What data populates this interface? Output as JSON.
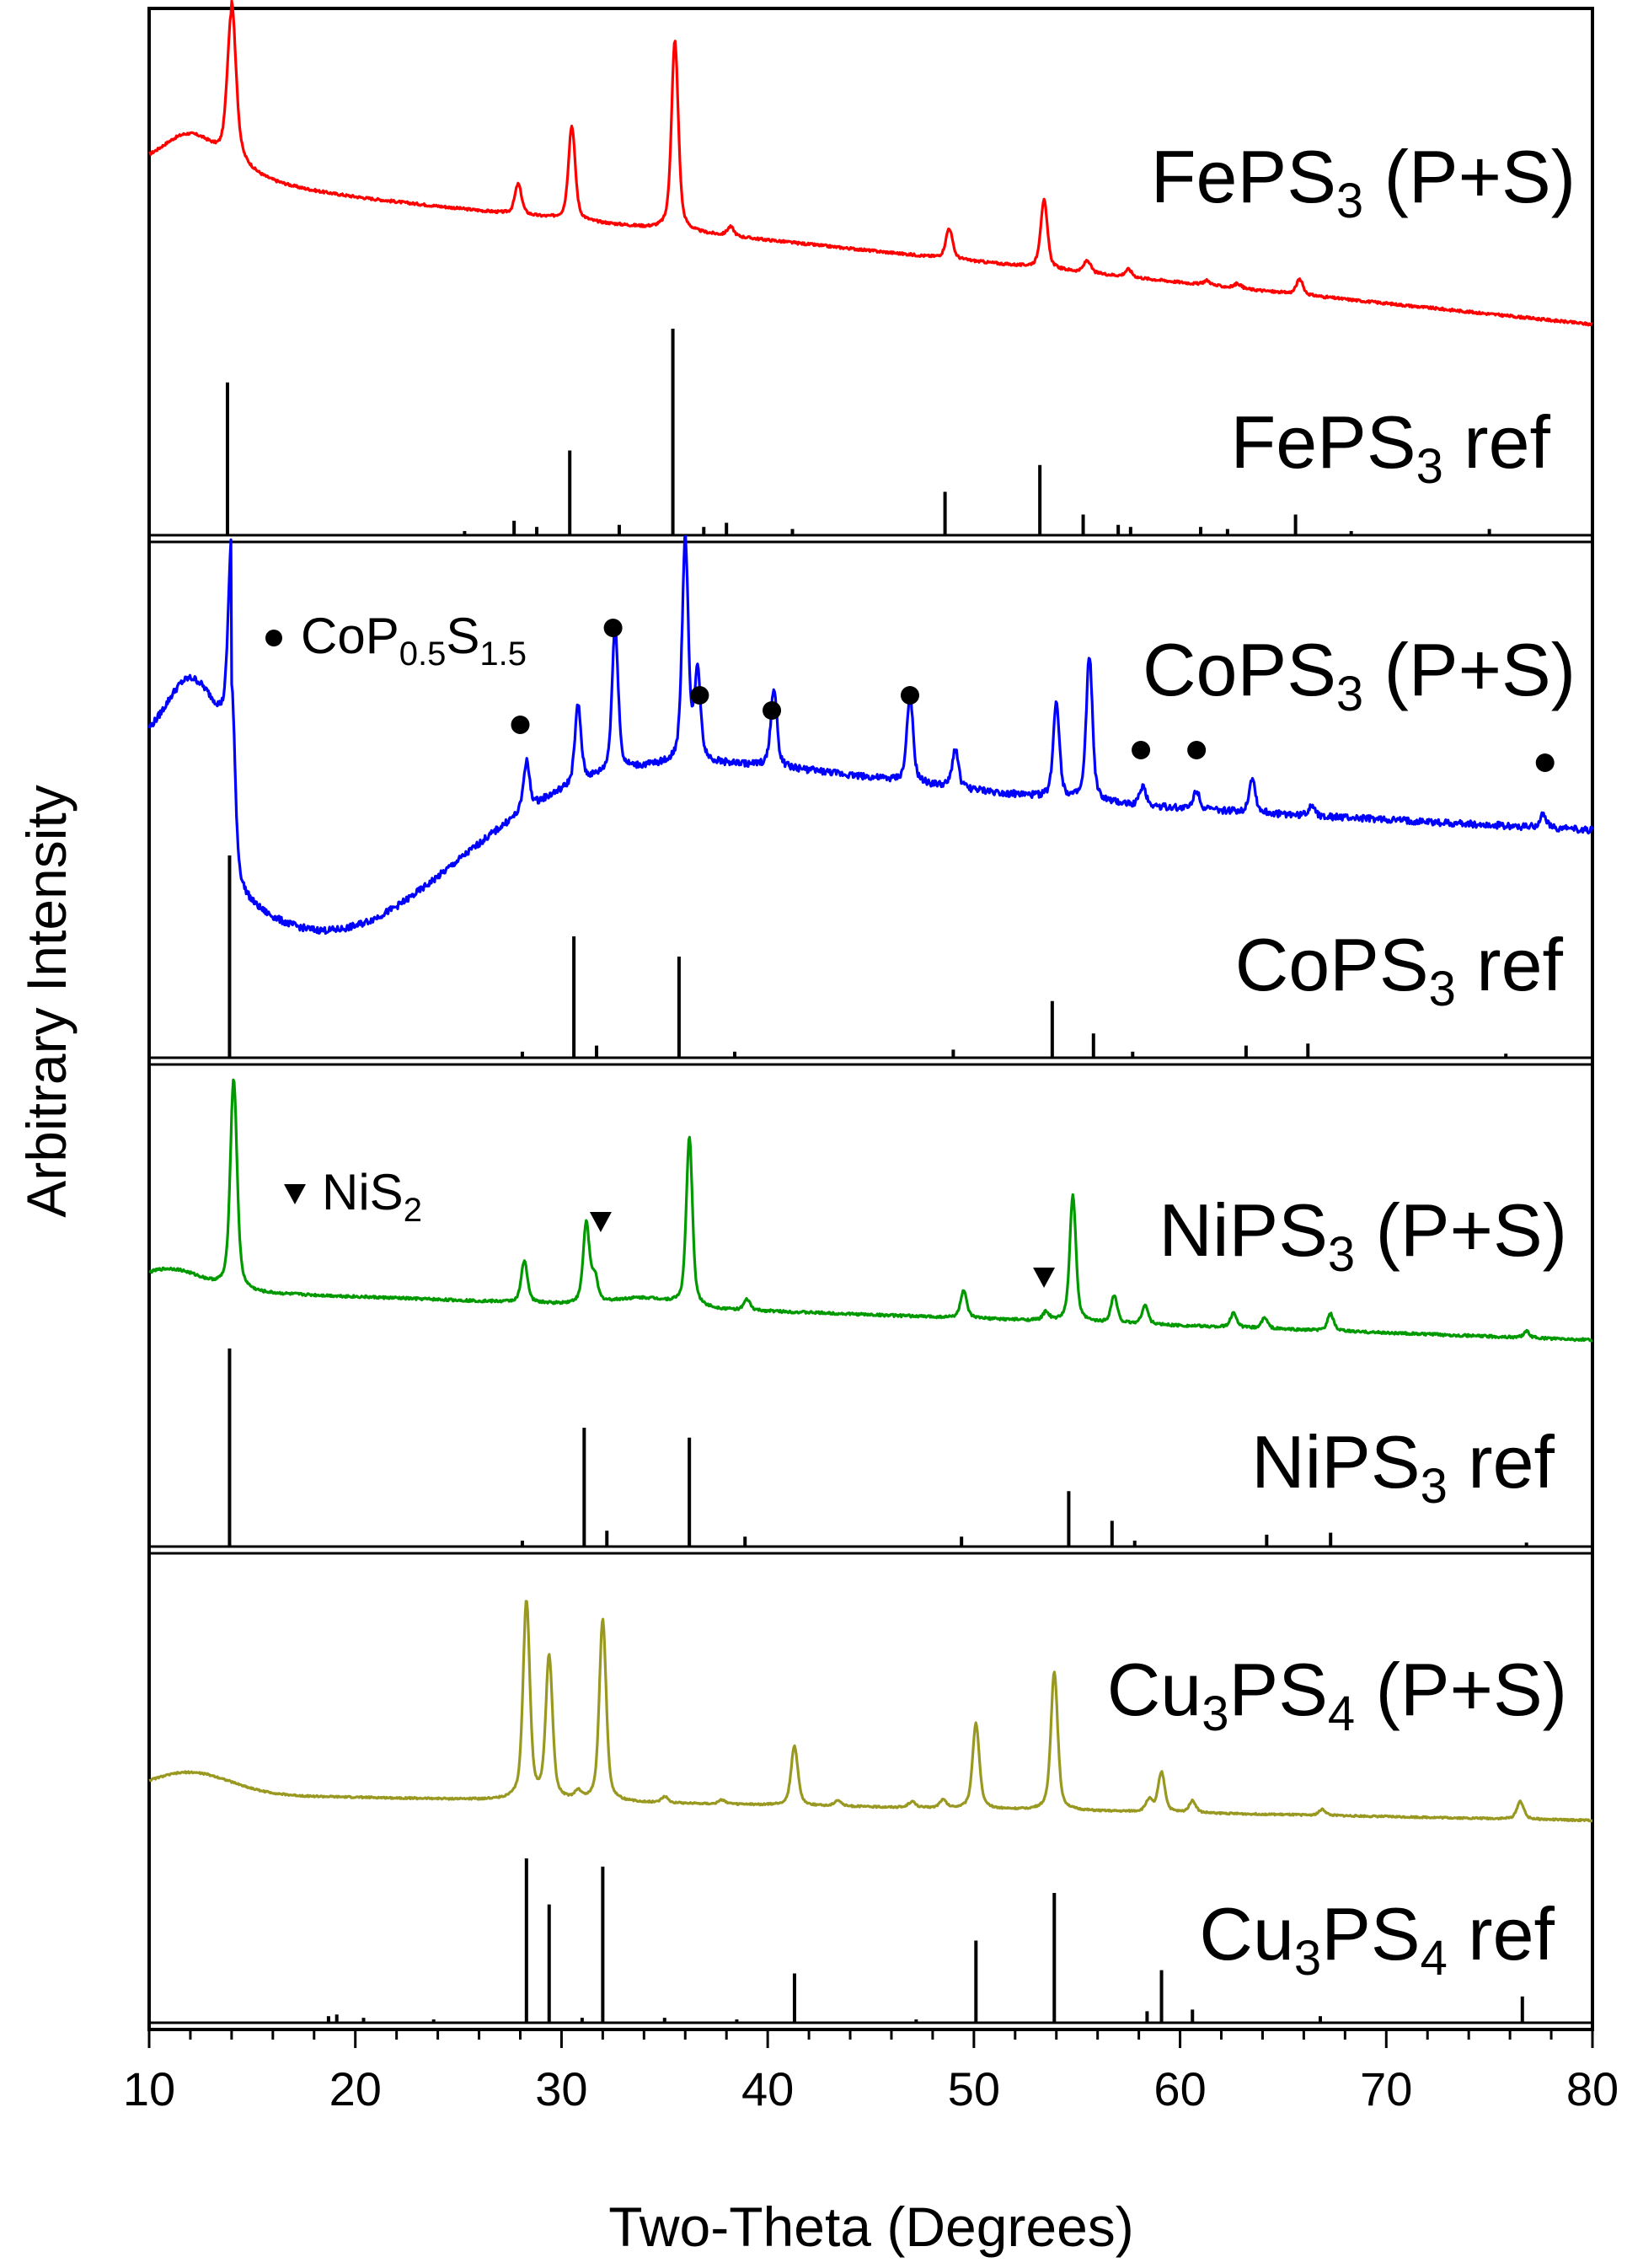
{
  "chart_data": {
    "type": "line",
    "xlabel": "Two-Theta (Degrees)",
    "ylabel": "Arbitrary Intensity",
    "xlim": [
      10,
      80
    ],
    "x_ticks": [
      "10",
      "20",
      "30",
      "40",
      "50",
      "60",
      "70",
      "80"
    ],
    "grid": false,
    "series": [
      {
        "name": "FePS3 (P+S)",
        "label_main": "FePS",
        "label_sub": "3",
        "label_tail": " (P+S)",
        "panel": 0,
        "kind": "measured",
        "color": "#ff0000",
        "peaks": [
          [
            14.0,
            1.0
          ],
          [
            27.9,
            0.2
          ],
          [
            30.5,
            0.62
          ],
          [
            35.5,
            1.25
          ],
          [
            38.2,
            0.06
          ],
          [
            48.8,
            0.2
          ],
          [
            53.4,
            0.45
          ],
          [
            55.5,
            0.08
          ],
          [
            57.5,
            0.05
          ],
          [
            61.3,
            0.03
          ],
          [
            62.8,
            0.03
          ],
          [
            65.8,
            0.1
          ]
        ]
      },
      {
        "name": "FePS3 ref",
        "label_main": "FePS",
        "label_sub": "3",
        "label_tail": " ref",
        "panel": 0,
        "kind": "reference",
        "color": "#000000",
        "peaks": [
          [
            13.8,
            0.74
          ],
          [
            25.3,
            0.02
          ],
          [
            27.7,
            0.07
          ],
          [
            28.8,
            0.04
          ],
          [
            30.4,
            0.41
          ],
          [
            32.8,
            0.05
          ],
          [
            35.4,
            1.0
          ],
          [
            36.9,
            0.04
          ],
          [
            38.0,
            0.06
          ],
          [
            41.2,
            0.03
          ],
          [
            48.6,
            0.21
          ],
          [
            53.2,
            0.34
          ],
          [
            55.3,
            0.1
          ],
          [
            57.0,
            0.05
          ],
          [
            57.6,
            0.04
          ],
          [
            61.0,
            0.04
          ],
          [
            62.3,
            0.03
          ],
          [
            65.6,
            0.1
          ],
          [
            68.3,
            0.02
          ],
          [
            75.0,
            0.03
          ]
        ]
      },
      {
        "name": "CoPS3 (P+S)",
        "label_main": "CoPS",
        "label_sub": "3",
        "label_tail": " (P+S)",
        "panel": 1,
        "kind": "measured",
        "color": "#0000ff",
        "peaks": [
          [
            14.0,
            1.0
          ],
          [
            28.3,
            0.25
          ],
          [
            30.8,
            0.4
          ],
          [
            32.6,
            0.75
          ],
          [
            36.0,
            1.15
          ],
          [
            36.6,
            0.45
          ],
          [
            40.3,
            0.4
          ],
          [
            46.9,
            0.45
          ],
          [
            49.1,
            0.2
          ],
          [
            54.0,
            0.5
          ],
          [
            55.6,
            0.75
          ],
          [
            58.2,
            0.1
          ],
          [
            60.8,
            0.1
          ],
          [
            63.5,
            0.18
          ],
          [
            66.4,
            0.06
          ],
          [
            77.6,
            0.07
          ]
        ]
      },
      {
        "name": "CoPS3 ref",
        "label_main": "CoPS",
        "label_sub": "3",
        "label_tail": " ref",
        "panel": 1,
        "kind": "reference",
        "color": "#000000",
        "peaks": [
          [
            13.9,
            1.0
          ],
          [
            28.1,
            0.03
          ],
          [
            30.6,
            0.6
          ],
          [
            31.7,
            0.06
          ],
          [
            35.7,
            0.5
          ],
          [
            38.4,
            0.03
          ],
          [
            49.0,
            0.04
          ],
          [
            53.8,
            0.28
          ],
          [
            55.8,
            0.12
          ],
          [
            57.7,
            0.03
          ],
          [
            63.2,
            0.06
          ],
          [
            66.2,
            0.07
          ],
          [
            75.8,
            0.02
          ]
        ]
      },
      {
        "name": "NiPS3 (P+S)",
        "label_main": "NiPS",
        "label_sub": "3",
        "label_tail": " (P+S)",
        "panel": 2,
        "kind": "measured",
        "color": "#009900",
        "peaks": [
          [
            14.1,
            1.0
          ],
          [
            28.2,
            0.2
          ],
          [
            31.2,
            0.38
          ],
          [
            31.6,
            0.12
          ],
          [
            36.2,
            0.8
          ],
          [
            39.0,
            0.05
          ],
          [
            49.5,
            0.13
          ],
          [
            53.5,
            0.04
          ],
          [
            54.8,
            0.6
          ],
          [
            56.8,
            0.13
          ],
          [
            58.3,
            0.09
          ],
          [
            62.6,
            0.07
          ],
          [
            64.1,
            0.05
          ],
          [
            67.3,
            0.08
          ],
          [
            76.8,
            0.03
          ]
        ]
      },
      {
        "name": "NiPS3 ref",
        "label_main": "NiPS",
        "label_sub": "3",
        "label_tail": " ref",
        "panel": 2,
        "kind": "reference",
        "color": "#000000",
        "peaks": [
          [
            13.9,
            1.0
          ],
          [
            28.1,
            0.03
          ],
          [
            31.1,
            0.6
          ],
          [
            32.2,
            0.08
          ],
          [
            36.2,
            0.55
          ],
          [
            38.9,
            0.05
          ],
          [
            49.4,
            0.05
          ],
          [
            54.6,
            0.28
          ],
          [
            56.7,
            0.13
          ],
          [
            57.8,
            0.03
          ],
          [
            64.2,
            0.06
          ],
          [
            67.3,
            0.07
          ],
          [
            76.8,
            0.02
          ]
        ]
      },
      {
        "name": "Cu3PS4 (P+S)",
        "label_main": "Cu",
        "label_sub": "3",
        "label_mid": "PS",
        "label_sub2": "4",
        "label_tail": " (P+S)",
        "panel": 3,
        "kind": "measured",
        "color": "#999922",
        "peaks": [
          [
            28.3,
            1.0
          ],
          [
            29.4,
            0.72
          ],
          [
            30.8,
            0.04
          ],
          [
            32.0,
            0.92
          ],
          [
            35.0,
            0.03
          ],
          [
            37.8,
            0.02
          ],
          [
            41.3,
            0.3
          ],
          [
            43.4,
            0.03
          ],
          [
            47.0,
            0.03
          ],
          [
            48.5,
            0.04
          ],
          [
            50.1,
            0.43
          ],
          [
            53.9,
            0.7
          ],
          [
            58.5,
            0.06
          ],
          [
            59.1,
            0.2
          ],
          [
            60.6,
            0.06
          ],
          [
            66.9,
            0.03
          ],
          [
            76.5,
            0.09
          ]
        ]
      },
      {
        "name": "Cu3PS4 ref",
        "label_main": "Cu",
        "label_sub": "3",
        "label_mid": "PS",
        "label_sub2": "4",
        "label_tail": " ref",
        "panel": 3,
        "kind": "reference",
        "color": "#000000",
        "peaks": [
          [
            18.7,
            0.04
          ],
          [
            19.1,
            0.05
          ],
          [
            20.4,
            0.03
          ],
          [
            23.8,
            0.02
          ],
          [
            28.3,
            1.0
          ],
          [
            29.4,
            0.72
          ],
          [
            31.0,
            0.03
          ],
          [
            32.0,
            0.95
          ],
          [
            35.0,
            0.03
          ],
          [
            38.5,
            0.02
          ],
          [
            41.3,
            0.3
          ],
          [
            47.2,
            0.02
          ],
          [
            50.1,
            0.5
          ],
          [
            53.9,
            0.79
          ],
          [
            58.4,
            0.07
          ],
          [
            59.1,
            0.32
          ],
          [
            60.6,
            0.08
          ],
          [
            66.8,
            0.04
          ],
          [
            76.6,
            0.16
          ]
        ]
      }
    ],
    "annotations": [
      {
        "panel": 1,
        "text_main": "CoP",
        "text_sub": "0.5",
        "text_mid": "S",
        "text_sub2": "1.5",
        "marker": "circle",
        "marker_x": [
          28.0,
          32.5,
          36.7,
          40.2,
          46.9,
          58.1,
          60.8,
          77.7
        ]
      },
      {
        "panel": 2,
        "text_main": "NiS",
        "text_sub": "2",
        "marker": "triangle-down",
        "marker_x": [
          31.9,
          53.4
        ]
      }
    ]
  }
}
